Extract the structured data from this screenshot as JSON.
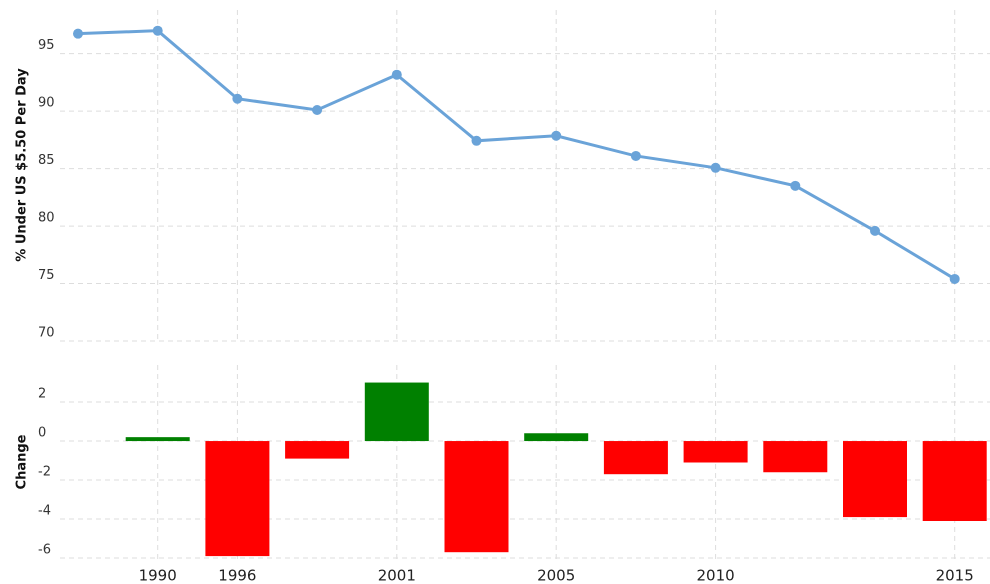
{
  "chart_data": [
    {
      "type": "line",
      "y_label": "% Under US $5.50 Per Day",
      "color": "#6aa3d8",
      "values": [
        96.74,
        97.0,
        91.08,
        90.1,
        93.17,
        87.42,
        87.86,
        86.1,
        85.07,
        83.5,
        79.58,
        75.4
      ],
      "ylim": [
        70,
        98.8
      ],
      "yticks": [
        70,
        75,
        80,
        85,
        90,
        95
      ],
      "grid": true
    },
    {
      "type": "bar",
      "y_label": "Change",
      "categories": [
        null,
        "1990",
        "1996",
        null,
        "2001",
        null,
        "2005",
        null,
        "2010",
        null,
        null,
        "2015"
      ],
      "values": [
        null,
        0.2,
        -5.9,
        -0.9,
        3.0,
        -5.7,
        0.4,
        -1.7,
        -1.1,
        -1.6,
        -3.9,
        -4.1
      ],
      "positive_color": "#008000",
      "negative_color": "#ff0000",
      "ylim": [
        -6.1,
        3.9
      ],
      "yticks": [
        -6,
        -4,
        -2,
        0,
        2
      ],
      "grid": true
    }
  ]
}
